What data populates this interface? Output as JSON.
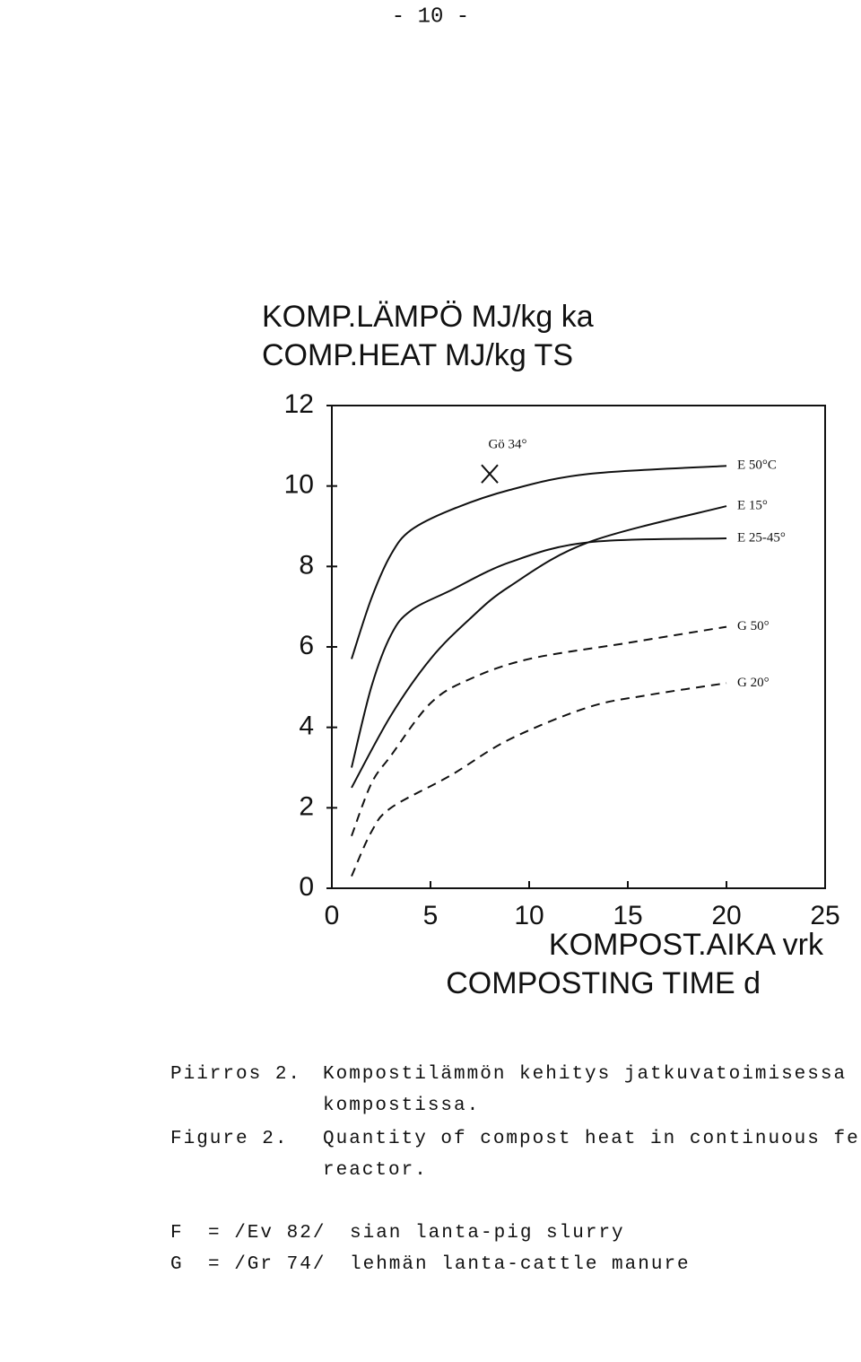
{
  "page_number": "- 10 -",
  "chart_data": {
    "type": "line",
    "y_label": [
      "KOMP.LÄMPÖ MJ/kg ka",
      "COMP.HEAT MJ/kg TS"
    ],
    "x_label": [
      "KOMPOST.AIKA vrk",
      "COMPOSTING TIME d"
    ],
    "xlim": [
      0,
      25
    ],
    "xticks": [
      0,
      5,
      10,
      15,
      20,
      25
    ],
    "ylim": [
      0,
      12
    ],
    "yticks": [
      0,
      2,
      4,
      6,
      8,
      10,
      12
    ],
    "color": "#111",
    "series": [
      {
        "name": "E 50°C",
        "style": "solid",
        "x": [
          1,
          2,
          3,
          4,
          6,
          9,
          13,
          20
        ],
        "values": [
          5.7,
          7.2,
          8.3,
          8.9,
          9.4,
          9.9,
          10.3,
          10.5
        ]
      },
      {
        "name": "E 15°",
        "style": "solid",
        "x": [
          1,
          3,
          5,
          7,
          9,
          13,
          20
        ],
        "values": [
          2.5,
          4.3,
          5.7,
          6.7,
          7.5,
          8.6,
          9.5
        ]
      },
      {
        "name": "E 25-45°",
        "style": "solid",
        "x": [
          1,
          2,
          3,
          4,
          6,
          9,
          13,
          20
        ],
        "values": [
          3.0,
          5.0,
          6.3,
          6.9,
          7.4,
          8.1,
          8.6,
          8.7
        ]
      },
      {
        "name": "G 50°",
        "style": "dashed",
        "x": [
          1,
          2,
          3,
          5,
          7,
          10,
          15,
          20
        ],
        "values": [
          1.3,
          2.6,
          3.3,
          4.6,
          5.2,
          5.7,
          6.1,
          6.5
        ]
      },
      {
        "name": "G 20°",
        "style": "dashed",
        "x": [
          1,
          2,
          3,
          6,
          9,
          13,
          16,
          20
        ],
        "values": [
          0.3,
          1.4,
          2.0,
          2.8,
          3.7,
          4.5,
          4.8,
          5.1
        ]
      },
      {
        "name": "Gö 34°",
        "style": "marker",
        "x": [
          8
        ],
        "values": [
          10.3
        ]
      }
    ]
  },
  "captions": [
    {
      "label": "Piirros 2.",
      "lines": [
        "Kompostilämmön kehitys jatkuvatoimisessa",
        "kompostissa."
      ]
    },
    {
      "label": "Figure 2.",
      "lines": [
        "Quantity of compost heat in continuous feed",
        "reactor."
      ]
    }
  ],
  "notes": [
    {
      "key": "F",
      "ref": "= /Ev 82/",
      "text": "sian lanta-pig slurry"
    },
    {
      "key": "G",
      "ref": "= /Gr 74/",
      "text": "lehmän lanta-cattle manure"
    }
  ]
}
